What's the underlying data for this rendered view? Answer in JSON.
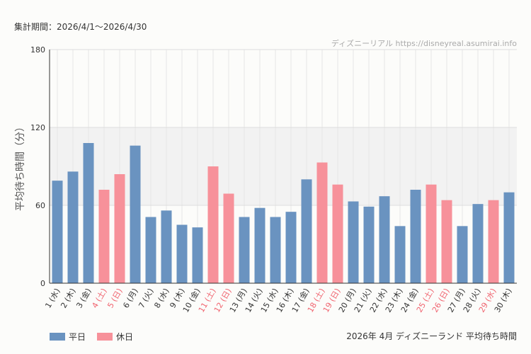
{
  "header": {
    "period": "集計期間：2026/4/1〜2026/4/30",
    "credit": "ディズニーリアル https://disneyreal.asumirai.info"
  },
  "footer": {
    "title": "2026年 4月 ディズニーランド 平均待ち時間"
  },
  "colors": {
    "weekday": "#6a93c0",
    "holiday": "#f7919a",
    "holiday_label": "#f0646f",
    "band": "#f2f2f2"
  },
  "chart_data": {
    "type": "bar",
    "ylabel": "平均待ち時間（分）",
    "ylim": [
      0,
      180
    ],
    "yticks": [
      0,
      60,
      120,
      180
    ],
    "band": [
      60,
      120
    ],
    "grid": true,
    "legend_position": "bottom-left",
    "categories": [
      "1 (水)",
      "2 (木)",
      "3 (金)",
      "4 (土)",
      "5 (日)",
      "6 (月)",
      "7 (火)",
      "8 (水)",
      "9 (木)",
      "10 (金)",
      "11 (土)",
      "12 (日)",
      "13 (月)",
      "14 (火)",
      "15 (水)",
      "16 (木)",
      "17 (金)",
      "18 (土)",
      "19 (日)",
      "20 (月)",
      "21 (火)",
      "22 (水)",
      "23 (木)",
      "24 (金)",
      "25 (土)",
      "26 (日)",
      "27 (月)",
      "28 (火)",
      "29 (水)",
      "30 (木)"
    ],
    "values": [
      79,
      86,
      108,
      72,
      84,
      106,
      51,
      56,
      45,
      43,
      90,
      69,
      51,
      58,
      51,
      55,
      80,
      93,
      76,
      63,
      59,
      67,
      44,
      72,
      76,
      64,
      44,
      61,
      64,
      70
    ],
    "day_type": [
      "weekday",
      "weekday",
      "weekday",
      "holiday",
      "holiday",
      "weekday",
      "weekday",
      "weekday",
      "weekday",
      "weekday",
      "holiday",
      "holiday",
      "weekday",
      "weekday",
      "weekday",
      "weekday",
      "weekday",
      "holiday",
      "holiday",
      "weekday",
      "weekday",
      "weekday",
      "weekday",
      "weekday",
      "holiday",
      "holiday",
      "weekday",
      "weekday",
      "holiday",
      "weekday"
    ],
    "legend": [
      {
        "key": "weekday",
        "label": "平日"
      },
      {
        "key": "holiday",
        "label": "休日"
      }
    ]
  }
}
